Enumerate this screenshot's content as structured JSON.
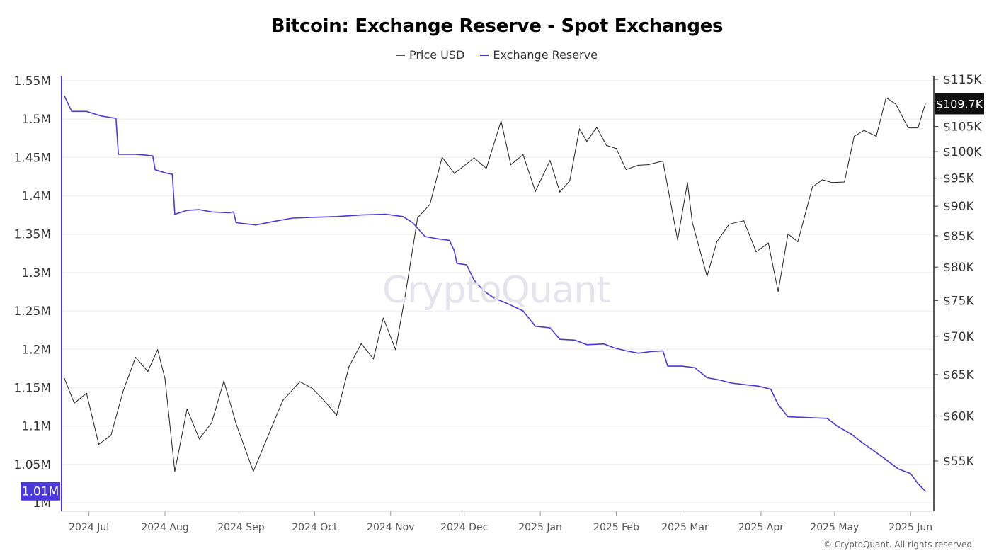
{
  "chart_data": {
    "type": "line",
    "title": "Bitcoin: Exchange Reserve - Spot Exchanges",
    "x_ticks": [
      "2024 Jul",
      "2024 Aug",
      "2024 Sep",
      "2024 Oct",
      "2024 Nov",
      "2024 Dec",
      "2025 Jan",
      "2025 Feb",
      "2025 Mar",
      "2025 Apr",
      "2025 May",
      "2025 Jun"
    ],
    "x_range": [
      "2024-06-21",
      "2025-06-07"
    ],
    "y_left": {
      "ticks": [
        "1M",
        "1.05M",
        "1.1M",
        "1.15M",
        "1.2M",
        "1.25M",
        "1.3M",
        "1.35M",
        "1.4M",
        "1.45M",
        "1.5M",
        "1.55M"
      ],
      "range": [
        1000000,
        1550000
      ]
    },
    "y_right": {
      "scale": "log",
      "ticks": [
        "$55K",
        "$60K",
        "$65K",
        "$70K",
        "$75K",
        "$80K",
        "$85K",
        "$90K",
        "$95K",
        "$100K",
        "$105K",
        "$110K",
        "$115K"
      ],
      "range": [
        52000,
        115000
      ]
    },
    "grid": true,
    "legend_position": "top-center",
    "current_labels": {
      "left": "1.01M",
      "right": "$109.7K"
    },
    "series": [
      {
        "name": "Price USD",
        "axis": "right",
        "color": "#222222",
        "points": [
          [
            "2024-06-21",
            64500
          ],
          [
            "2024-06-25",
            61500
          ],
          [
            "2024-06-30",
            62700
          ],
          [
            "2024-07-05",
            56800
          ],
          [
            "2024-07-10",
            57800
          ],
          [
            "2024-07-15",
            63000
          ],
          [
            "2024-07-20",
            67200
          ],
          [
            "2024-07-25",
            65400
          ],
          [
            "2024-07-29",
            68200
          ],
          [
            "2024-08-01",
            64500
          ],
          [
            "2024-08-05",
            53900
          ],
          [
            "2024-08-10",
            60800
          ],
          [
            "2024-08-15",
            57400
          ],
          [
            "2024-08-20",
            59200
          ],
          [
            "2024-08-25",
            64200
          ],
          [
            "2024-08-30",
            59100
          ],
          [
            "2024-09-06",
            53900
          ],
          [
            "2024-09-12",
            57700
          ],
          [
            "2024-09-18",
            61800
          ],
          [
            "2024-09-25",
            64100
          ],
          [
            "2024-09-30",
            63300
          ],
          [
            "2024-10-04",
            62100
          ],
          [
            "2024-10-10",
            60100
          ],
          [
            "2024-10-15",
            66000
          ],
          [
            "2024-10-20",
            69000
          ],
          [
            "2024-10-25",
            67000
          ],
          [
            "2024-10-29",
            72500
          ],
          [
            "2024-11-03",
            68200
          ],
          [
            "2024-11-07",
            75800
          ],
          [
            "2024-11-12",
            88000
          ],
          [
            "2024-11-17",
            90300
          ],
          [
            "2024-11-22",
            98900
          ],
          [
            "2024-11-27",
            95900
          ],
          [
            "2024-12-01",
            97300
          ],
          [
            "2024-12-05",
            98800
          ],
          [
            "2024-12-10",
            96800
          ],
          [
            "2024-12-16",
            106100
          ],
          [
            "2024-12-20",
            97500
          ],
          [
            "2024-12-25",
            99400
          ],
          [
            "2024-12-30",
            92600
          ],
          [
            "2025-01-05",
            98300
          ],
          [
            "2025-01-09",
            92500
          ],
          [
            "2025-01-13",
            94500
          ],
          [
            "2025-01-17",
            104500
          ],
          [
            "2025-01-20",
            102000
          ],
          [
            "2025-01-24",
            104800
          ],
          [
            "2025-01-28",
            101200
          ],
          [
            "2025-02-01",
            100600
          ],
          [
            "2025-02-05",
            96600
          ],
          [
            "2025-02-10",
            97400
          ],
          [
            "2025-02-14",
            97500
          ],
          [
            "2025-02-20",
            98200
          ],
          [
            "2025-02-26",
            84300
          ],
          [
            "2025-03-02",
            94200
          ],
          [
            "2025-03-04",
            87200
          ],
          [
            "2025-03-10",
            78600
          ],
          [
            "2025-03-14",
            84000
          ],
          [
            "2025-03-19",
            86900
          ],
          [
            "2025-03-25",
            87500
          ],
          [
            "2025-03-30",
            82400
          ],
          [
            "2025-04-04",
            83800
          ],
          [
            "2025-04-08",
            76300
          ],
          [
            "2025-04-12",
            85300
          ],
          [
            "2025-04-16",
            84000
          ],
          [
            "2025-04-22",
            93400
          ],
          [
            "2025-04-26",
            94700
          ],
          [
            "2025-04-30",
            94200
          ],
          [
            "2025-05-05",
            94300
          ],
          [
            "2025-05-09",
            103000
          ],
          [
            "2025-05-13",
            104200
          ],
          [
            "2025-05-18",
            103000
          ],
          [
            "2025-05-22",
            111000
          ],
          [
            "2025-05-26",
            109600
          ],
          [
            "2025-05-31",
            104700
          ],
          [
            "2025-06-04",
            104700
          ],
          [
            "2025-06-07",
            109700
          ]
        ]
      },
      {
        "name": "Exchange Reserve",
        "axis": "left",
        "color": "#4b38dc",
        "points": [
          [
            "2024-06-21",
            1530000
          ],
          [
            "2024-06-24",
            1510000
          ],
          [
            "2024-06-30",
            1510000
          ],
          [
            "2024-07-06",
            1504000
          ],
          [
            "2024-07-10",
            1502000
          ],
          [
            "2024-07-12",
            1501000
          ],
          [
            "2024-07-13",
            1454000
          ],
          [
            "2024-07-20",
            1454000
          ],
          [
            "2024-07-24",
            1453000
          ],
          [
            "2024-07-27",
            1452000
          ],
          [
            "2024-07-28",
            1434000
          ],
          [
            "2024-08-01",
            1430000
          ],
          [
            "2024-08-04",
            1428000
          ],
          [
            "2024-08-05",
            1376000
          ],
          [
            "2024-08-10",
            1381000
          ],
          [
            "2024-08-15",
            1382000
          ],
          [
            "2024-08-20",
            1379000
          ],
          [
            "2024-08-27",
            1378000
          ],
          [
            "2024-08-29",
            1379000
          ],
          [
            "2024-08-30",
            1365000
          ],
          [
            "2024-09-07",
            1362000
          ],
          [
            "2024-09-15",
            1367000
          ],
          [
            "2024-09-22",
            1371000
          ],
          [
            "2024-09-30",
            1372000
          ],
          [
            "2024-10-10",
            1373000
          ],
          [
            "2024-10-20",
            1375000
          ],
          [
            "2024-10-30",
            1376000
          ],
          [
            "2024-11-06",
            1373000
          ],
          [
            "2024-11-10",
            1365000
          ],
          [
            "2024-11-15",
            1347000
          ],
          [
            "2024-11-20",
            1344000
          ],
          [
            "2024-11-25",
            1342000
          ],
          [
            "2024-11-27",
            1328000
          ],
          [
            "2024-11-28",
            1312000
          ],
          [
            "2024-12-02",
            1310000
          ],
          [
            "2024-12-05",
            1290000
          ],
          [
            "2024-12-09",
            1276000
          ],
          [
            "2024-12-13",
            1267000
          ],
          [
            "2024-12-19",
            1259000
          ],
          [
            "2024-12-25",
            1250000
          ],
          [
            "2024-12-30",
            1230000
          ],
          [
            "2025-01-05",
            1228000
          ],
          [
            "2025-01-09",
            1213000
          ],
          [
            "2025-01-15",
            1212000
          ],
          [
            "2025-01-20",
            1206000
          ],
          [
            "2025-01-27",
            1207000
          ],
          [
            "2025-01-31",
            1202000
          ],
          [
            "2025-02-05",
            1198000
          ],
          [
            "2025-02-10",
            1195000
          ],
          [
            "2025-02-15",
            1197000
          ],
          [
            "2025-02-20",
            1198000
          ],
          [
            "2025-02-22",
            1178000
          ],
          [
            "2025-02-28",
            1178000
          ],
          [
            "2025-03-05",
            1176000
          ],
          [
            "2025-03-10",
            1163000
          ],
          [
            "2025-03-15",
            1160000
          ],
          [
            "2025-03-20",
            1156000
          ],
          [
            "2025-03-25",
            1154000
          ],
          [
            "2025-03-31",
            1152000
          ],
          [
            "2025-04-05",
            1148000
          ],
          [
            "2025-04-08",
            1128000
          ],
          [
            "2025-04-12",
            1112000
          ],
          [
            "2025-04-20",
            1111000
          ],
          [
            "2025-04-28",
            1110000
          ],
          [
            "2025-05-02",
            1100000
          ],
          [
            "2025-05-08",
            1089000
          ],
          [
            "2025-05-12",
            1079000
          ],
          [
            "2025-05-16",
            1070000
          ],
          [
            "2025-05-22",
            1056000
          ],
          [
            "2025-05-27",
            1044000
          ],
          [
            "2025-06-01",
            1038000
          ],
          [
            "2025-06-04",
            1025000
          ],
          [
            "2025-06-07",
            1015000
          ]
        ]
      }
    ],
    "watermark": "CryptoQuant",
    "copyright": "© CryptoQuant. All rights reserved"
  }
}
